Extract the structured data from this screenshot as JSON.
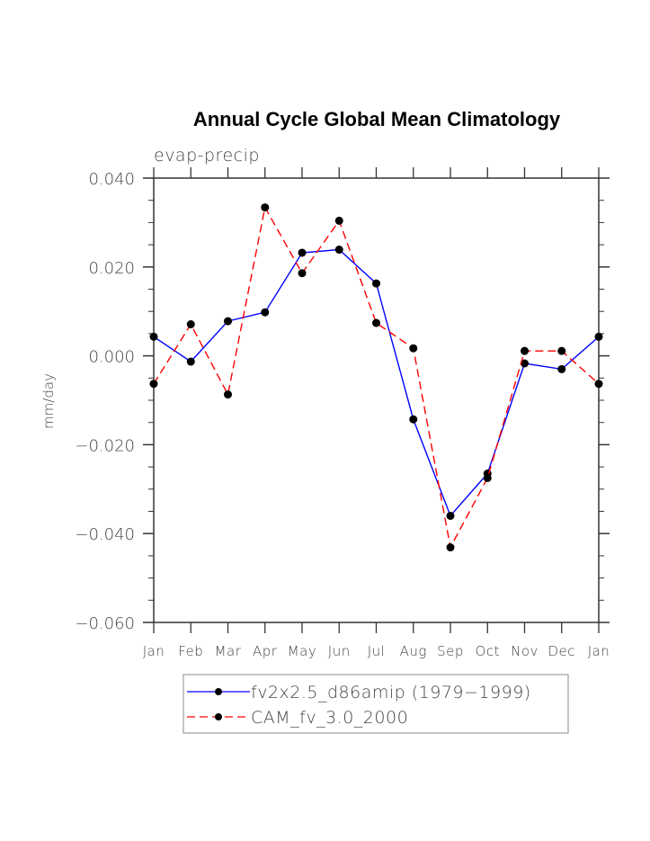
{
  "chart_data": {
    "type": "line",
    "title": "Annual Cycle Global Mean Climatology",
    "subtitle": "evap-precip",
    "xlabel": "",
    "ylabel": "mm/day",
    "categories": [
      "Jan",
      "Feb",
      "Mar",
      "Apr",
      "May",
      "Jun",
      "Jul",
      "Aug",
      "Sep",
      "Oct",
      "Nov",
      "Dec",
      "Jan"
    ],
    "ylim": [
      -0.06,
      0.04
    ],
    "yticks": [
      0.04,
      0.02,
      0.0,
      -0.02,
      -0.04,
      -0.06
    ],
    "ytick_labels": [
      "0.040",
      "0.020",
      "0.000",
      "−0.020",
      "−0.040",
      "−0.060"
    ],
    "y_minor_step": 0.005,
    "grid": false,
    "legend_position": "bottom",
    "series": [
      {
        "name": "fv2x2.5_d86amip (1979−1999)",
        "color": "#0000ff",
        "line_style": "solid",
        "marker": "filled-circle",
        "values": [
          0.0043,
          -0.0013,
          0.0078,
          0.0098,
          0.0232,
          0.0239,
          0.0163,
          -0.0143,
          -0.036,
          -0.0265,
          -0.0017,
          -0.003,
          0.0043
        ]
      },
      {
        "name": "CAM_fv_3.0_2000",
        "color": "#ff0000",
        "line_style": "dashed",
        "marker": "filled-circle",
        "values": [
          -0.0063,
          0.0071,
          -0.0087,
          0.0334,
          0.0186,
          0.0304,
          0.0074,
          0.0017,
          -0.0431,
          -0.0275,
          0.0011,
          0.0011,
          -0.0063
        ]
      }
    ]
  }
}
